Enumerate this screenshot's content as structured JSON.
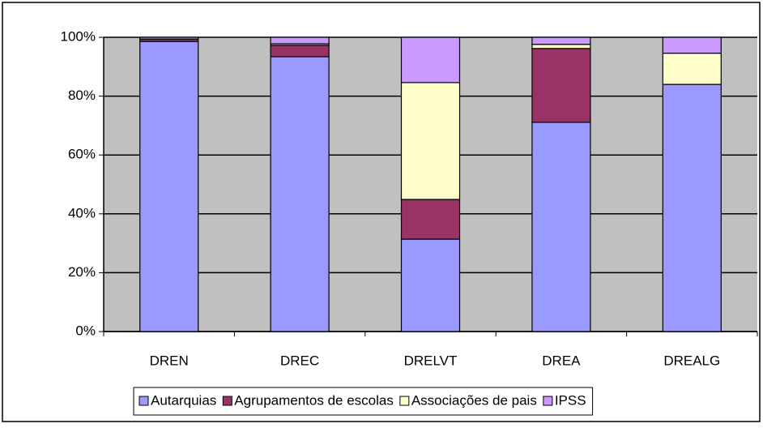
{
  "chart_data": {
    "type": "stacked_bar",
    "categories": [
      "DREN",
      "DREC",
      "DRELVT",
      "DREA",
      "DREALG"
    ],
    "series": [
      {
        "name": "Autarquias",
        "color": "#9999ff",
        "values": [
          98.6,
          93.4,
          31.4,
          71.1,
          84
        ]
      },
      {
        "name": "Agrupamentos de escolas",
        "color": "#993366",
        "values": [
          0.8,
          3.9,
          13.5,
          25.1,
          0
        ]
      },
      {
        "name": "Associações de pais",
        "color": "#ffffcc",
        "values": [
          0,
          0.5,
          39.7,
          1.4,
          10.6
        ]
      },
      {
        "name": "IPSS",
        "color": "#cc99ff",
        "values": [
          0.6,
          2.2,
          15.4,
          2.4,
          5.4
        ]
      }
    ],
    "ylim": [
      0,
      100
    ],
    "yticks": [
      {
        "value": 0,
        "label": "0%"
      },
      {
        "value": 20,
        "label": "20%"
      },
      {
        "value": 40,
        "label": "40%"
      },
      {
        "value": 60,
        "label": "60%"
      },
      {
        "value": 80,
        "label": "80%"
      },
      {
        "value": 100,
        "label": "100%"
      }
    ],
    "grid": true
  }
}
